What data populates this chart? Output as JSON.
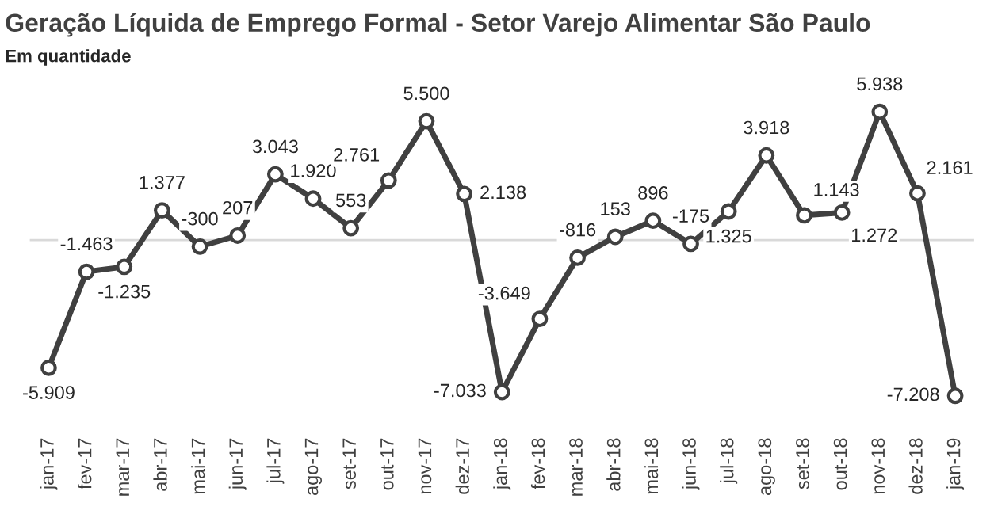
{
  "chart_data": {
    "type": "line",
    "title": "Geração Líquida de Emprego Formal - Setor Varejo Alimentar São Paulo",
    "subtitle": "Em quantidade",
    "categories": [
      "jan-17",
      "fev-17",
      "mar-17",
      "abr-17",
      "mai-17",
      "jun-17",
      "jul-17",
      "ago-17",
      "set-17",
      "out-17",
      "nov-17",
      "dez-17",
      "jan-18",
      "fev-18",
      "mar-18",
      "abr-18",
      "mai-18",
      "jun-18",
      "jul-18",
      "ago-18",
      "set-18",
      "out-18",
      "nov-18",
      "dez-18",
      "jan-19"
    ],
    "series": [
      {
        "color": "#404040",
        "values": [
          -5909,
          -1463,
          -1235,
          1377,
          -300,
          207,
          3043,
          1920,
          553,
          2761,
          5500,
          2138,
          -7033,
          -3649,
          -816,
          153,
          896,
          -175,
          1325,
          3918,
          1143,
          1272,
          5938,
          2161,
          -7208
        ],
        "value_labels": [
          "-5.909",
          "-1.463",
          "-1.235",
          "1.377",
          "-300",
          "207",
          "3.043",
          "1.920",
          "553",
          "2.761",
          "5.500",
          "2.138",
          "-7.033",
          "-3.649",
          "-816",
          "153",
          "896",
          "-175",
          "1.325",
          "3.918",
          "1.143",
          "1.272",
          "5.938",
          "2.161",
          "-7.208"
        ]
      }
    ],
    "marker": "circle",
    "line_style": "solid",
    "tick_labels": "x",
    "grid": false,
    "ref_lines": [
      {
        "axis": "y",
        "value": 0,
        "color": "#d9d9d9"
      }
    ]
  }
}
